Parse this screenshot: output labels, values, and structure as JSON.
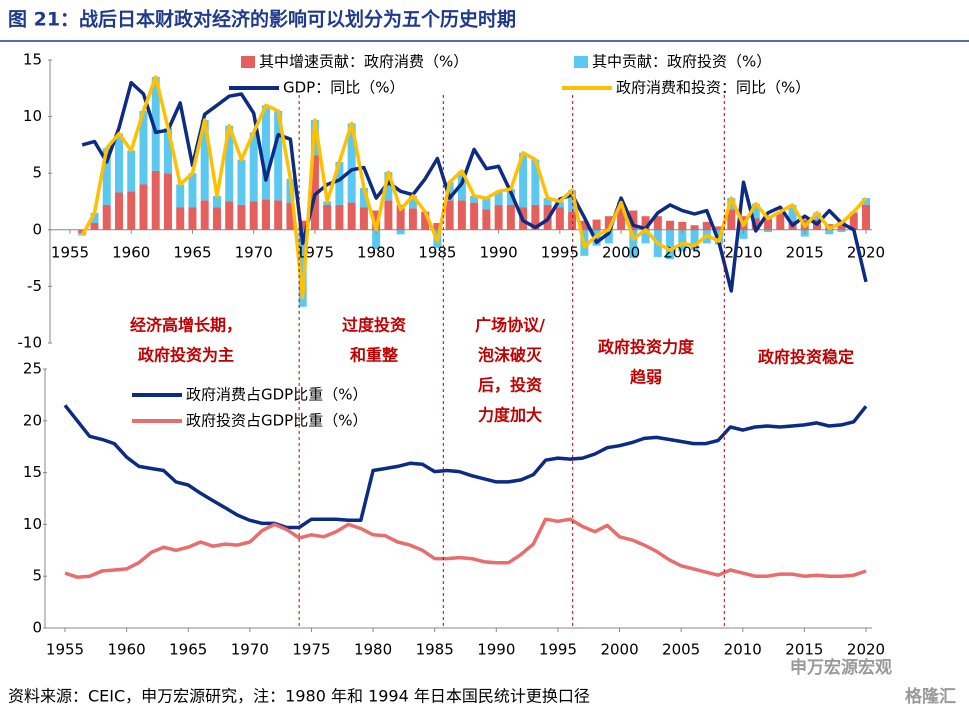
{
  "title": "图 21：战后日本财政对经济的影响可以划分为五个历史时期",
  "source": "资料来源：CEIC，申万宏源研究，注：1980 年和 1994 年日本国民统计更换口径",
  "watermark": [
    "申万宏源宏观",
    "格隆汇"
  ],
  "dividers": [
    1974,
    1985.7,
    1996.2,
    2008.5
  ],
  "periods": [
    [
      "经济高增长期，",
      "政府投资为主"
    ],
    [
      "过度投资",
      "和重整"
    ],
    [
      "广场协议/",
      "泡沫破灭",
      "后，投资",
      "力度加大"
    ],
    [
      "政府投资力度",
      "趋弱"
    ],
    [
      "政府投资稳定"
    ]
  ],
  "chart_data": [
    {
      "type": "combo",
      "xlim": [
        1955,
        2020
      ],
      "xticks": [
        1955,
        1960,
        1965,
        1970,
        1975,
        1980,
        1985,
        1990,
        1995,
        2000,
        2005,
        2010,
        2015,
        2020
      ],
      "ylim": [
        -10,
        15
      ],
      "yticks": [
        15,
        10,
        5,
        0,
        -5,
        -10
      ],
      "x": [
        1956,
        1957,
        1958,
        1959,
        1960,
        1961,
        1962,
        1963,
        1964,
        1965,
        1966,
        1967,
        1968,
        1969,
        1970,
        1971,
        1972,
        1973,
        1974,
        1975,
        1976,
        1977,
        1978,
        1979,
        1980,
        1981,
        1982,
        1983,
        1984,
        1985,
        1986,
        1987,
        1988,
        1989,
        1990,
        1991,
        1992,
        1993,
        1994,
        1995,
        1996,
        1997,
        1998,
        1999,
        2000,
        2001,
        2002,
        2003,
        2004,
        2005,
        2006,
        2007,
        2008,
        2009,
        2010,
        2011,
        2012,
        2013,
        2014,
        2015,
        2016,
        2017,
        2018,
        2019,
        2020
      ],
      "series": [
        {
          "name": "其中增速贡献：政府消费（%）",
          "mark": "bar",
          "color": "#e5605d",
          "values": [
            -0.3,
            0.6,
            2.2,
            3.3,
            3.4,
            4.0,
            5.2,
            5.0,
            2.0,
            2.0,
            2.6,
            2.0,
            2.5,
            2.2,
            2.5,
            2.7,
            2.6,
            2.4,
            0.8,
            6.6,
            2.2,
            2.2,
            2.4,
            2.0,
            1.7,
            2.6,
            2.2,
            1.9,
            1.6,
            0.6,
            2.6,
            2.6,
            2.4,
            1.8,
            2.2,
            2.2,
            2.0,
            2.2,
            2.2,
            2.0,
            1.6,
            0.8,
            0.9,
            1.2,
            2.2,
            1.7,
            1.2,
            1.2,
            0.8,
            0.7,
            0.4,
            0.7,
            0.3,
            1.8,
            1.2,
            1.0,
            1.2,
            1.4,
            0.8,
            0.9,
            0.9,
            0.5,
            0.8,
            1.5,
            2.2
          ]
        },
        {
          "name": "其中贡献：政府投资（%）",
          "mark": "bar",
          "color": "#5bc8f0",
          "values": [
            -0.2,
            0.9,
            5.0,
            5.2,
            3.6,
            6.5,
            8.3,
            4.0,
            2.0,
            3.0,
            7.1,
            1.0,
            6.7,
            4.0,
            6.1,
            8.3,
            7.9,
            2.1,
            -6.8,
            3.1,
            0.3,
            3.8,
            7.0,
            1.7,
            -1.7,
            2.5,
            -0.4,
            1.1,
            0.0,
            -1.6,
            1.6,
            2.6,
            0.6,
            1.0,
            1.2,
            1.4,
            4.8,
            4.0,
            0.6,
            0.5,
            1.9,
            -2.3,
            -1.4,
            -1.2,
            0.2,
            -2.5,
            -1.2,
            -2.4,
            -2.6,
            -1.9,
            -1.8,
            -1.2,
            -1.3,
            1.0,
            -0.8,
            1.3,
            -0.2,
            0.2,
            1.4,
            -0.6,
            0.6,
            -0.4,
            -0.2,
            0.1,
            0.6
          ]
        },
        {
          "name": "GDP：同比（%）",
          "mark": "line",
          "color": "#0c2c84",
          "values": [
            7.5,
            7.8,
            6.0,
            9.0,
            13.0,
            12.0,
            8.6,
            8.8,
            11.2,
            5.7,
            10.2,
            11.0,
            11.8,
            12.0,
            10.3,
            4.4,
            8.4,
            8.0,
            -1.2,
            3.1,
            4.0,
            4.4,
            5.3,
            5.5,
            2.8,
            4.2,
            3.4,
            3.1,
            4.5,
            6.3,
            2.8,
            4.1,
            7.1,
            5.4,
            5.6,
            3.3,
            0.8,
            0.2,
            0.9,
            2.7,
            3.1,
            1.1,
            -1.1,
            -0.3,
            2.8,
            0.4,
            0.1,
            1.5,
            2.2,
            1.7,
            1.4,
            1.7,
            -1.1,
            -5.4,
            4.2,
            -0.1,
            1.5,
            2.0,
            0.4,
            1.2,
            0.5,
            1.7,
            0.6,
            0.0,
            -4.6
          ]
        },
        {
          "name": "政府消费和投资：同比（%）",
          "mark": "line",
          "color": "#ffc000",
          "values": [
            -0.5,
            1.5,
            7.2,
            8.5,
            7.0,
            10.5,
            13.5,
            9.0,
            4.0,
            5.0,
            9.7,
            3.0,
            9.2,
            6.2,
            8.6,
            11.0,
            10.5,
            4.5,
            -6.0,
            9.7,
            2.5,
            6.0,
            9.4,
            3.7,
            0.0,
            5.1,
            1.8,
            3.0,
            1.6,
            -1.0,
            4.2,
            5.2,
            3.0,
            2.8,
            3.4,
            3.6,
            6.8,
            6.2,
            2.8,
            2.5,
            3.5,
            -1.5,
            -0.5,
            0.0,
            2.4,
            -0.8,
            0.0,
            -1.2,
            -1.8,
            -1.2,
            -1.4,
            -0.5,
            -1.0,
            2.8,
            0.4,
            2.3,
            1.0,
            1.6,
            2.2,
            0.3,
            1.5,
            0.1,
            0.6,
            1.6,
            2.8
          ]
        }
      ]
    },
    {
      "type": "line",
      "xlim": [
        1955,
        2020
      ],
      "xticks": [
        1955,
        1960,
        1965,
        1970,
        1975,
        1980,
        1985,
        1990,
        1995,
        2000,
        2005,
        2010,
        2015,
        2020
      ],
      "ylim": [
        0,
        25
      ],
      "yticks": [
        25,
        20,
        15,
        10,
        5,
        0
      ],
      "x": [
        1955,
        1956,
        1957,
        1958,
        1959,
        1960,
        1961,
        1962,
        1963,
        1964,
        1965,
        1966,
        1967,
        1968,
        1969,
        1970,
        1971,
        1972,
        1973,
        1974,
        1975,
        1976,
        1977,
        1978,
        1979,
        1980,
        1981,
        1982,
        1983,
        1984,
        1985,
        1986,
        1987,
        1988,
        1989,
        1990,
        1991,
        1992,
        1993,
        1994,
        1995,
        1996,
        1997,
        1998,
        1999,
        2000,
        2001,
        2002,
        2003,
        2004,
        2005,
        2006,
        2007,
        2008,
        2009,
        2010,
        2011,
        2012,
        2013,
        2014,
        2015,
        2016,
        2017,
        2018,
        2019,
        2020
      ],
      "series": [
        {
          "name": "政府消费占GDP比重（%）",
          "color": "#0c2c84",
          "values": [
            21.5,
            20.0,
            18.5,
            18.2,
            17.8,
            16.5,
            15.6,
            15.4,
            15.2,
            14.1,
            13.8,
            13.0,
            12.3,
            11.6,
            10.9,
            10.4,
            10.1,
            10.1,
            9.7,
            9.7,
            10.5,
            10.5,
            10.5,
            10.4,
            10.4,
            15.2,
            15.4,
            15.6,
            15.9,
            15.8,
            15.1,
            15.2,
            15.1,
            14.7,
            14.4,
            14.1,
            14.1,
            14.3,
            14.8,
            16.2,
            16.4,
            16.3,
            16.4,
            16.8,
            17.4,
            17.6,
            17.9,
            18.3,
            18.4,
            18.2,
            18.0,
            17.8,
            17.8,
            18.1,
            19.4,
            19.1,
            19.4,
            19.5,
            19.4,
            19.5,
            19.6,
            19.8,
            19.5,
            19.6,
            19.9,
            21.4
          ]
        },
        {
          "name": "政府投资占GDP比重（%）",
          "color": "#e86d6d",
          "values": [
            5.3,
            4.9,
            5.0,
            5.5,
            5.6,
            5.7,
            6.3,
            7.3,
            7.8,
            7.5,
            7.8,
            8.3,
            7.9,
            8.1,
            8.0,
            8.3,
            9.4,
            10.0,
            9.5,
            8.7,
            9.0,
            8.8,
            9.3,
            10.0,
            9.6,
            9.0,
            8.9,
            8.3,
            8.0,
            7.5,
            6.7,
            6.7,
            6.8,
            6.7,
            6.4,
            6.3,
            6.3,
            7.1,
            8.1,
            10.5,
            10.3,
            10.5,
            9.8,
            9.3,
            9.9,
            8.8,
            8.5,
            8.0,
            7.4,
            6.6,
            6.0,
            5.7,
            5.4,
            5.1,
            5.6,
            5.3,
            5.0,
            5.0,
            5.2,
            5.2,
            5.0,
            5.1,
            5.0,
            5.0,
            5.1,
            5.5
          ]
        }
      ]
    }
  ]
}
